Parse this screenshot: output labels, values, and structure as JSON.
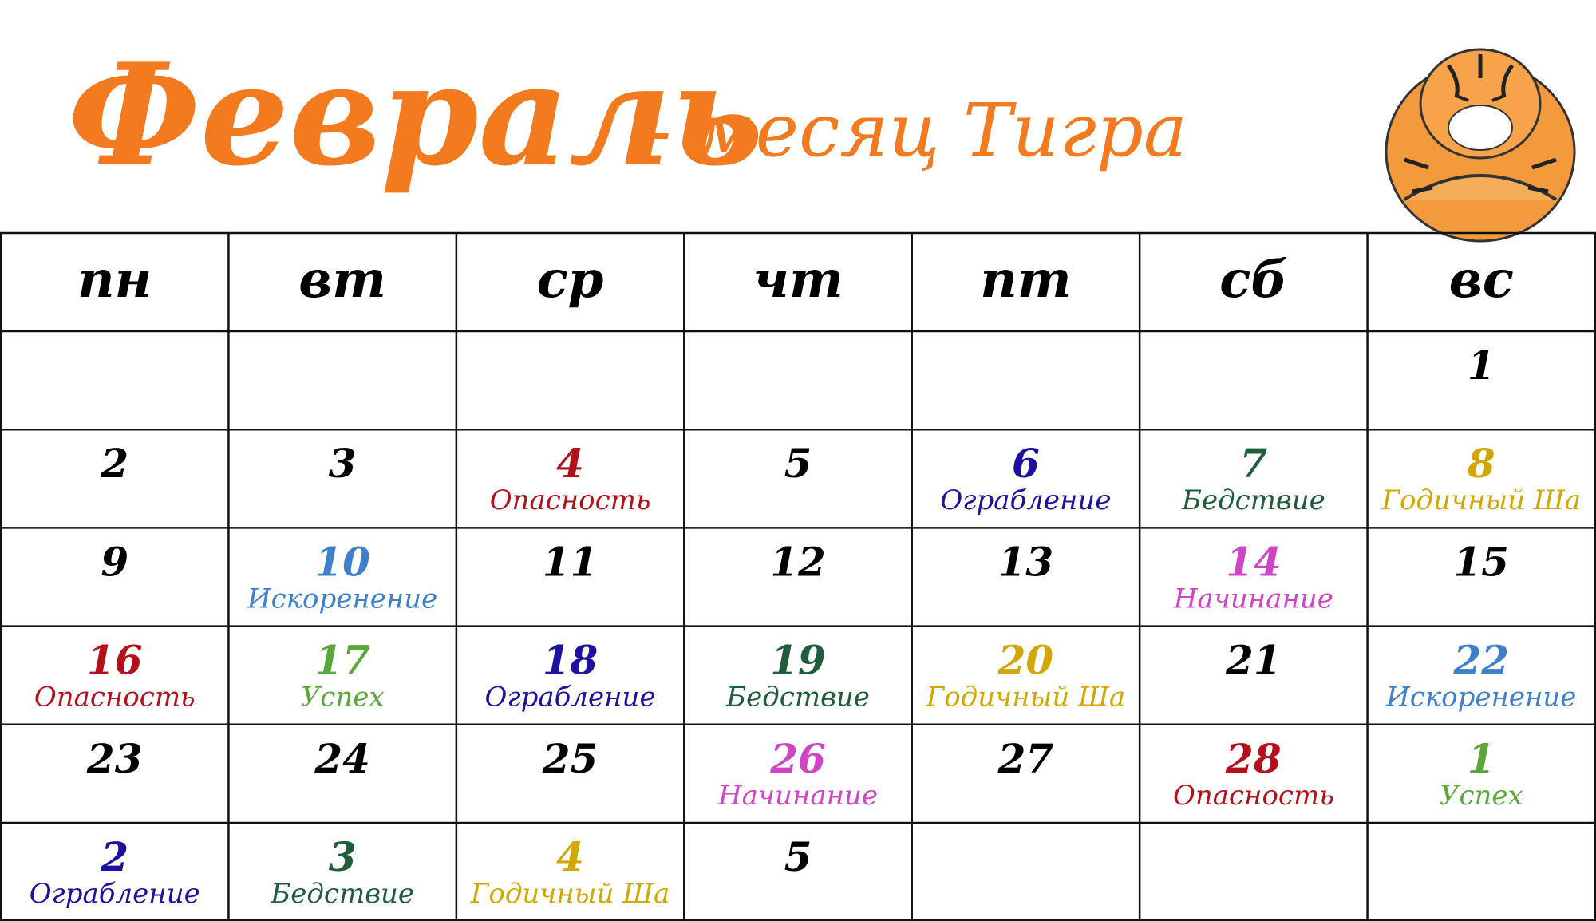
{
  "title": "Февраль",
  "subtitle": "- месяц Тигра",
  "weekdays": [
    "пн",
    "вт",
    "ср",
    "чт",
    "пт",
    "сб",
    "вс"
  ],
  "weeks": [
    [
      null,
      null,
      null,
      null,
      null,
      null,
      {
        "day": 1
      }
    ],
    [
      {
        "day": 2
      },
      {
        "day": 3
      },
      {
        "day": 4,
        "label": "Опасность",
        "color": "#b50f1c"
      },
      {
        "day": 5
      },
      {
        "day": 6,
        "label": "Ограбление",
        "color": "#1d12a0"
      },
      {
        "day": 7,
        "label": "Бедствие",
        "color": "#1f5c3c"
      },
      {
        "day": 8,
        "label": "Годичный Ша",
        "color": "#d2a800"
      }
    ],
    [
      {
        "day": 9
      },
      {
        "day": 10,
        "label": "Искоренение",
        "color": "#3f80cc"
      },
      {
        "day": 11
      },
      {
        "day": 12
      },
      {
        "day": 13
      },
      {
        "day": 14,
        "label": "Начинание",
        "color": "#cf45c4"
      },
      {
        "day": 15
      }
    ],
    [
      {
        "day": 16,
        "label": "Опасность",
        "color": "#b50f1c"
      },
      {
        "day": 17,
        "label": "Успех",
        "color": "#5aa83c"
      },
      {
        "day": 18,
        "label": "Ограбление",
        "color": "#1d12a0"
      },
      {
        "day": 19,
        "label": "Бедствие",
        "color": "#1f5c3c"
      },
      {
        "day": 20,
        "label": "Годичный Ша",
        "color": "#d2a800"
      },
      {
        "day": 21
      },
      {
        "day": 22,
        "label": "Искоренение",
        "color": "#3f80cc"
      }
    ],
    [
      {
        "day": 23
      },
      {
        "day": 24
      },
      {
        "day": 25
      },
      {
        "day": 26,
        "label": "Начинание",
        "color": "#cf45c4"
      },
      {
        "day": 27
      },
      {
        "day": 28,
        "label": "Опасность",
        "color": "#b50f1c"
      },
      {
        "day": 1,
        "label": "Успех",
        "color": "#5aa83c"
      }
    ],
    [
      {
        "day": 2,
        "label": "Ограбление",
        "color": "#1d12a0"
      },
      {
        "day": 3,
        "label": "Бедствие",
        "color": "#1f5c3c"
      },
      {
        "day": 4,
        "label": "Годичный Ша",
        "color": "#d2a800"
      },
      {
        "day": 5
      },
      null,
      null,
      null
    ]
  ]
}
